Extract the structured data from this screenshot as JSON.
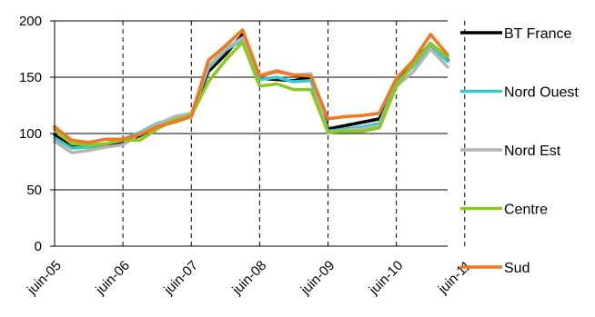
{
  "chart_data": {
    "type": "line",
    "title": "",
    "xlabel": "",
    "ylabel": "",
    "ylim": [
      0,
      200
    ],
    "yticks": [
      0,
      50,
      100,
      150,
      200
    ],
    "x_tick_labels": [
      "juin-05",
      "juin-06",
      "juin-07",
      "juin-08",
      "juin-09",
      "juin-10",
      "juin-11"
    ],
    "x_period_start": "juin-05",
    "x_period_end": "juin-11",
    "grid": {
      "horizontal": "solid",
      "vertical": "dashed"
    },
    "legend": "right",
    "series": [
      {
        "name": "BT France",
        "color": "#000000",
        "values": [
          99,
          88,
          88,
          90,
          93,
          98,
          107,
          112,
          116,
          155,
          170,
          188,
          149,
          148,
          147,
          150,
          104,
          107,
          110,
          113,
          145,
          163,
          180,
          165
        ]
      },
      {
        "name": "Nord Ouest",
        "color": "#3cc8c8",
        "values": [
          96,
          87,
          88,
          91,
          95,
          101,
          109,
          113,
          117,
          158,
          174,
          183,
          148,
          150,
          146,
          147,
          102,
          104,
          106,
          109,
          145,
          160,
          178,
          164
        ]
      },
      {
        "name": "Nord Est",
        "color": "#b4b4b4",
        "values": [
          93,
          83,
          85,
          88,
          90,
          100,
          108,
          115,
          118,
          160,
          175,
          185,
          152,
          156,
          152,
          153,
          101,
          103,
          104,
          107,
          142,
          155,
          175,
          159
        ]
      },
      {
        "name": "Centre",
        "color": "#8cc81e",
        "values": [
          104,
          91,
          90,
          91,
          94,
          94,
          104,
          112,
          116,
          146,
          165,
          181,
          142,
          144,
          139,
          139,
          101,
          102,
          102,
          105,
          142,
          162,
          180,
          168
        ]
      },
      {
        "name": "Sud",
        "color": "#f0781e",
        "values": [
          106,
          94,
          92,
          95,
          95,
          99,
          106,
          110,
          115,
          165,
          178,
          192,
          151,
          155,
          152,
          151,
          113,
          115,
          116,
          118,
          149,
          165,
          188,
          170
        ]
      }
    ]
  }
}
